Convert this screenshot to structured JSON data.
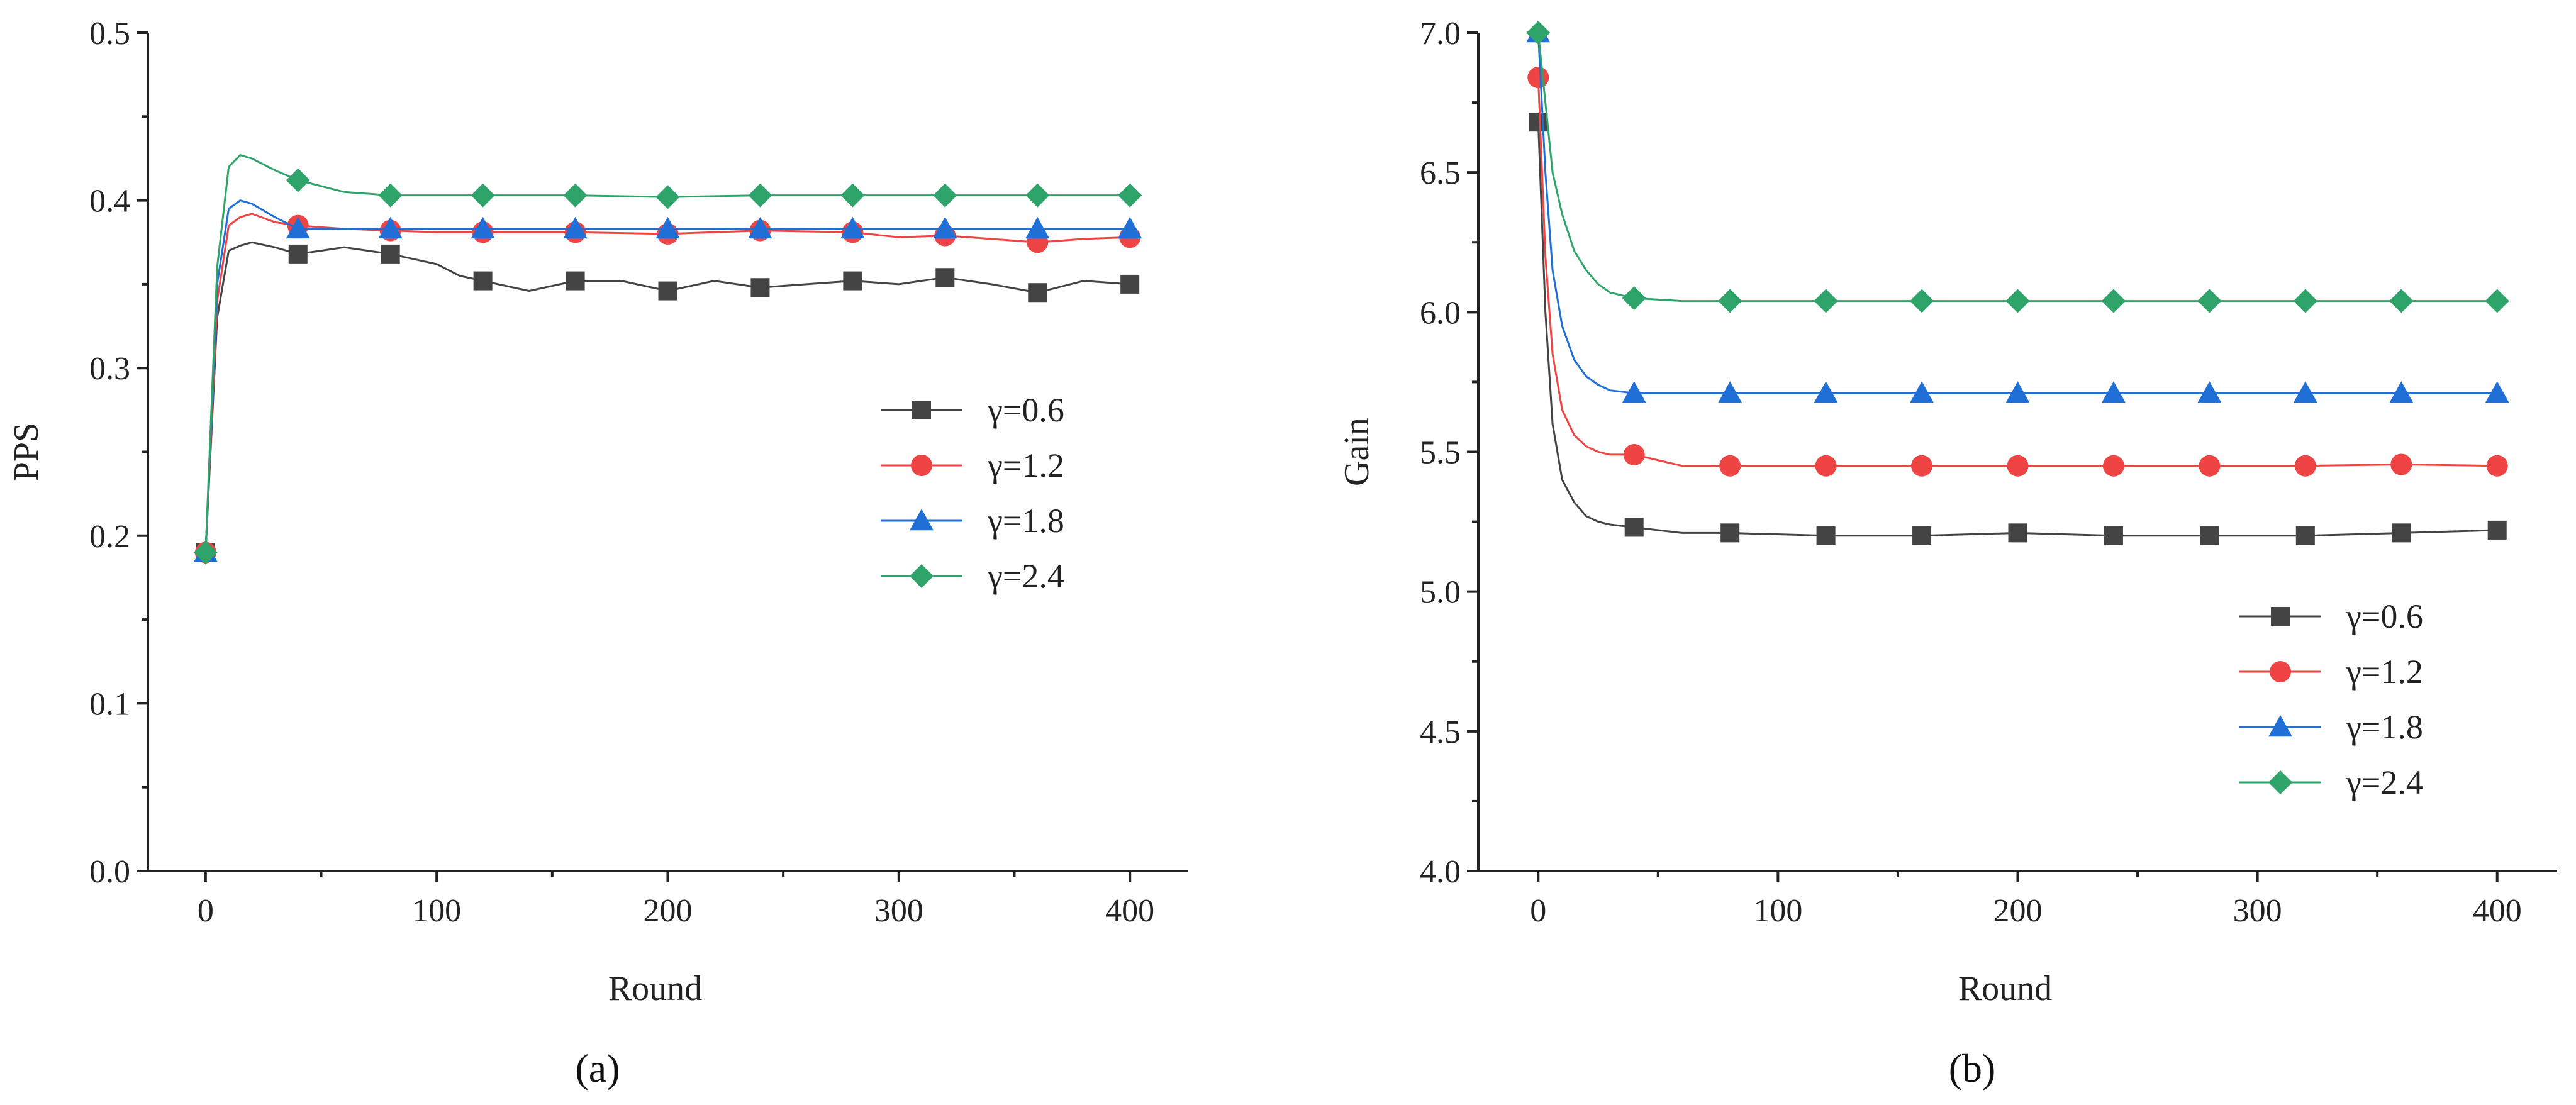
{
  "figure_labels": [
    "(a)",
    "(b)"
  ],
  "chart_data": [
    {
      "type": "line",
      "panel": "(a)",
      "xlabel": "Round",
      "ylabel": "PPS",
      "xlim": [
        -25,
        425
      ],
      "ylim": [
        0.0,
        0.5
      ],
      "xticks": [
        0,
        100,
        200,
        300,
        400
      ],
      "xtick_labels": [
        "0",
        "100",
        "200",
        "300",
        "400"
      ],
      "yticks": [
        0.0,
        0.1,
        0.2,
        0.3,
        0.4,
        0.5
      ],
      "ytick_labels": [
        "0.0",
        "0.1",
        "0.2",
        "0.3",
        "0.4",
        "0.5"
      ],
      "legend_position": "center-right",
      "series": [
        {
          "name": "γ=0.6",
          "color": "#444444",
          "marker": "square",
          "x": [
            0,
            5,
            10,
            15,
            20,
            30,
            40,
            50,
            60,
            80,
            100,
            110,
            120,
            140,
            160,
            180,
            200,
            220,
            240,
            260,
            280,
            300,
            320,
            340,
            360,
            380,
            400
          ],
          "values": [
            0.19,
            0.33,
            0.37,
            0.373,
            0.375,
            0.372,
            0.368,
            0.37,
            0.372,
            0.368,
            0.362,
            0.355,
            0.352,
            0.346,
            0.352,
            0.352,
            0.346,
            0.352,
            0.348,
            0.35,
            0.352,
            0.35,
            0.354,
            0.35,
            0.345,
            0.352,
            0.35
          ],
          "markers_x": [
            0,
            40,
            80,
            120,
            160,
            200,
            240,
            280,
            320,
            360,
            400
          ],
          "markers_y": [
            0.19,
            0.368,
            0.368,
            0.352,
            0.352,
            0.346,
            0.348,
            0.352,
            0.354,
            0.345,
            0.35
          ]
        },
        {
          "name": "γ=1.2",
          "color": "#ee4444",
          "marker": "circle",
          "x": [
            0,
            5,
            10,
            15,
            20,
            30,
            40,
            60,
            80,
            100,
            120,
            160,
            200,
            240,
            280,
            300,
            320,
            340,
            360,
            380,
            400
          ],
          "values": [
            0.19,
            0.34,
            0.385,
            0.39,
            0.392,
            0.387,
            0.385,
            0.383,
            0.382,
            0.381,
            0.381,
            0.381,
            0.38,
            0.382,
            0.381,
            0.378,
            0.379,
            0.377,
            0.375,
            0.377,
            0.378
          ],
          "markers_x": [
            0,
            40,
            80,
            120,
            160,
            200,
            240,
            280,
            320,
            360,
            400
          ],
          "markers_y": [
            0.19,
            0.385,
            0.382,
            0.381,
            0.381,
            0.38,
            0.382,
            0.381,
            0.379,
            0.375,
            0.378
          ]
        },
        {
          "name": "γ=1.8",
          "color": "#1f6fd6",
          "marker": "triangle",
          "x": [
            0,
            5,
            10,
            15,
            20,
            30,
            40,
            60,
            80,
            100,
            140,
            200,
            260,
            320,
            400
          ],
          "values": [
            0.19,
            0.35,
            0.395,
            0.4,
            0.398,
            0.39,
            0.383,
            0.383,
            0.383,
            0.383,
            0.383,
            0.383,
            0.383,
            0.383,
            0.383
          ],
          "markers_x": [
            0,
            40,
            80,
            120,
            160,
            200,
            240,
            280,
            320,
            360,
            400
          ],
          "markers_y": [
            0.19,
            0.383,
            0.383,
            0.383,
            0.383,
            0.383,
            0.383,
            0.383,
            0.383,
            0.383,
            0.383
          ]
        },
        {
          "name": "γ=2.4",
          "color": "#2ea36a",
          "marker": "diamond",
          "x": [
            0,
            5,
            10,
            15,
            20,
            30,
            40,
            60,
            80,
            120,
            160,
            200,
            240,
            280,
            320,
            360,
            400
          ],
          "values": [
            0.19,
            0.36,
            0.42,
            0.427,
            0.425,
            0.418,
            0.412,
            0.405,
            0.403,
            0.403,
            0.403,
            0.402,
            0.403,
            0.403,
            0.403,
            0.403,
            0.403
          ],
          "markers_x": [
            0,
            40,
            80,
            120,
            160,
            200,
            240,
            280,
            320,
            360,
            400
          ],
          "markers_y": [
            0.19,
            0.412,
            0.403,
            0.403,
            0.403,
            0.402,
            0.403,
            0.403,
            0.403,
            0.403,
            0.403
          ]
        }
      ]
    },
    {
      "type": "line",
      "panel": "(b)",
      "xlabel": "Round",
      "ylabel": "Gain",
      "xlim": [
        -25,
        425
      ],
      "ylim": [
        4.0,
        7.0
      ],
      "xticks": [
        0,
        100,
        200,
        300,
        400
      ],
      "xtick_labels": [
        "0",
        "100",
        "200",
        "300",
        "400"
      ],
      "yticks": [
        4.0,
        4.5,
        5.0,
        5.5,
        6.0,
        6.5,
        7.0
      ],
      "ytick_labels": [
        "4.0",
        "4.5",
        "5.0",
        "5.5",
        "6.0",
        "6.5",
        "7.0"
      ],
      "legend_position": "bottom-right",
      "series": [
        {
          "name": "γ=0.6",
          "color": "#444444",
          "marker": "square",
          "x": [
            0,
            3,
            6,
            10,
            15,
            20,
            25,
            30,
            40,
            60,
            80,
            120,
            160,
            200,
            240,
            280,
            320,
            360,
            400
          ],
          "values": [
            6.68,
            6.0,
            5.6,
            5.4,
            5.32,
            5.27,
            5.25,
            5.24,
            5.23,
            5.21,
            5.21,
            5.2,
            5.2,
            5.21,
            5.2,
            5.2,
            5.2,
            5.21,
            5.22
          ],
          "markers_x": [
            0,
            40,
            80,
            120,
            160,
            200,
            240,
            280,
            320,
            360,
            400
          ],
          "markers_y": [
            6.68,
            5.23,
            5.21,
            5.2,
            5.2,
            5.21,
            5.2,
            5.2,
            5.2,
            5.21,
            5.22
          ]
        },
        {
          "name": "γ=1.2",
          "color": "#ee4444",
          "marker": "circle",
          "x": [
            0,
            3,
            6,
            10,
            15,
            20,
            25,
            30,
            40,
            60,
            80,
            120,
            160,
            200,
            240,
            280,
            320,
            360,
            400
          ],
          "values": [
            6.84,
            6.2,
            5.85,
            5.65,
            5.56,
            5.52,
            5.5,
            5.49,
            5.49,
            5.45,
            5.45,
            5.45,
            5.45,
            5.45,
            5.45,
            5.45,
            5.45,
            5.455,
            5.45
          ],
          "markers_x": [
            0,
            40,
            80,
            120,
            160,
            200,
            240,
            280,
            320,
            360,
            400
          ],
          "markers_y": [
            6.84,
            5.49,
            5.45,
            5.45,
            5.45,
            5.45,
            5.45,
            5.45,
            5.45,
            5.455,
            5.45
          ]
        },
        {
          "name": "γ=1.8",
          "color": "#1f6fd6",
          "marker": "triangle",
          "x": [
            0,
            3,
            6,
            10,
            15,
            20,
            25,
            30,
            40,
            60,
            80,
            120,
            160,
            200,
            240,
            280,
            320,
            360,
            400
          ],
          "values": [
            7.0,
            6.5,
            6.15,
            5.95,
            5.83,
            5.77,
            5.74,
            5.72,
            5.71,
            5.71,
            5.71,
            5.71,
            5.71,
            5.71,
            5.71,
            5.71,
            5.71,
            5.71,
            5.71
          ],
          "markers_x": [
            0,
            40,
            80,
            120,
            160,
            200,
            240,
            280,
            320,
            360,
            400
          ],
          "markers_y": [
            7.0,
            5.71,
            5.71,
            5.71,
            5.71,
            5.71,
            5.71,
            5.71,
            5.71,
            5.71,
            5.71
          ]
        },
        {
          "name": "γ=2.4",
          "color": "#2ea36a",
          "marker": "diamond",
          "x": [
            0,
            3,
            6,
            10,
            15,
            20,
            25,
            30,
            40,
            60,
            80,
            120,
            160,
            200,
            240,
            280,
            320,
            360,
            400
          ],
          "values": [
            7.0,
            6.75,
            6.5,
            6.35,
            6.22,
            6.15,
            6.1,
            6.07,
            6.05,
            6.04,
            6.04,
            6.04,
            6.04,
            6.04,
            6.04,
            6.04,
            6.04,
            6.04,
            6.04
          ],
          "markers_x": [
            0,
            40,
            80,
            120,
            160,
            200,
            240,
            280,
            320,
            360,
            400
          ],
          "markers_y": [
            7.0,
            6.05,
            6.04,
            6.04,
            6.04,
            6.04,
            6.04,
            6.04,
            6.04,
            6.04,
            6.04
          ]
        }
      ]
    }
  ]
}
